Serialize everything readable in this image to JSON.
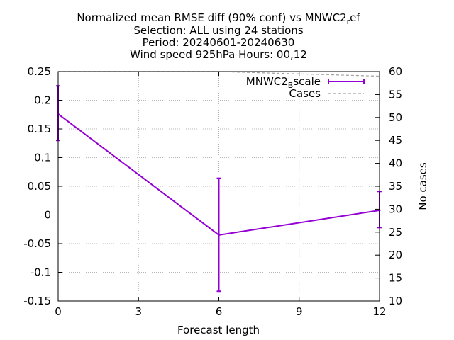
{
  "chart_data": {
    "type": "line",
    "title_lines": [
      "Normalized mean RMSE diff (90% conf) vs MNWC2",
      "Selection: ALL using    24 stations",
      "Period: 20240601-20240630",
      "Wind speed 925hPa   Hours: 00,12"
    ],
    "title_sub": "r",
    "title_sub_tail": "ef",
    "xlabel": "Forecast length",
    "ylabel": "",
    "y2label": "No cases",
    "xlim": [
      0,
      12
    ],
    "ylim": [
      -0.15,
      0.25
    ],
    "y2lim": [
      10,
      60
    ],
    "x_ticks": [
      "0",
      "3",
      "6",
      "9",
      "12"
    ],
    "y_ticks": [
      "0.25",
      "0.2",
      "0.15",
      "0.1",
      "0.05",
      "0",
      "-0.05",
      "-0.1",
      "-0.15"
    ],
    "y2_ticks": [
      "60",
      "55",
      "50",
      "45",
      "40",
      "35",
      "30",
      "25",
      "20",
      "15",
      "10"
    ],
    "grid": true,
    "legend_position": "top-right",
    "legend": {
      "series_main": "MNWC2",
      "series_sub": "B",
      "series_tail": "scale",
      "cases": "Cases"
    },
    "series": [
      {
        "name": "MNWC2_Bscale",
        "color": "#9400d3",
        "x": [
          0,
          6,
          12
        ],
        "y": [
          0.176,
          -0.035,
          0.008
        ],
        "err_low": [
          0.13,
          -0.133,
          -0.022
        ],
        "err_high": [
          0.225,
          0.064,
          0.041
        ]
      }
    ],
    "cases_series": {
      "name": "Cases",
      "color": "#a0a0a0",
      "x": [
        0,
        6,
        12
      ],
      "y": [
        60,
        60,
        59
      ]
    }
  }
}
